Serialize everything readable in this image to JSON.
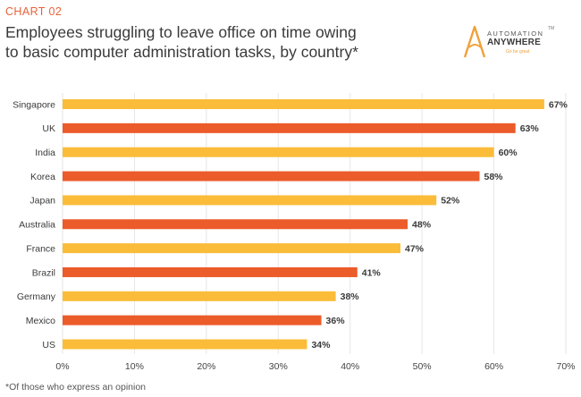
{
  "header": {
    "chart_number": "CHART 02",
    "title_line1": "Employees struggling to leave office on time owing",
    "title_line2": "to basic computer administration tasks, by country*"
  },
  "logo": {
    "top_text": "AUTOMATION",
    "main_text": "ANYWHERE",
    "tm": "TM",
    "tagline": "Go be great"
  },
  "chart_data": {
    "type": "bar",
    "orientation": "horizontal",
    "title": "Employees struggling to leave office on time owing to basic computer administration tasks, by country*",
    "categories": [
      "Singapore",
      "UK",
      "India",
      "Korea",
      "Japan",
      "Australia",
      "France",
      "Brazil",
      "Germany",
      "Mexico",
      "US"
    ],
    "values": [
      67,
      63,
      60,
      58,
      52,
      48,
      47,
      41,
      38,
      36,
      34
    ],
    "value_labels": [
      "67%",
      "63%",
      "60%",
      "58%",
      "52%",
      "48%",
      "47%",
      "41%",
      "38%",
      "36%",
      "34%"
    ],
    "unit": "%",
    "xlim": [
      0,
      70
    ],
    "xticks": [
      0,
      10,
      20,
      30,
      40,
      50,
      60,
      70
    ],
    "xtick_labels": [
      "0%",
      "10%",
      "20%",
      "30%",
      "40%",
      "50%",
      "60%",
      "70%"
    ],
    "xlabel": "",
    "ylabel": "",
    "grid": true,
    "colors": {
      "odd": "#fbbc3a",
      "even": "#ec5b2a",
      "grid": "#e6e6e6"
    }
  },
  "footnote": "*Of those who express an opinion"
}
